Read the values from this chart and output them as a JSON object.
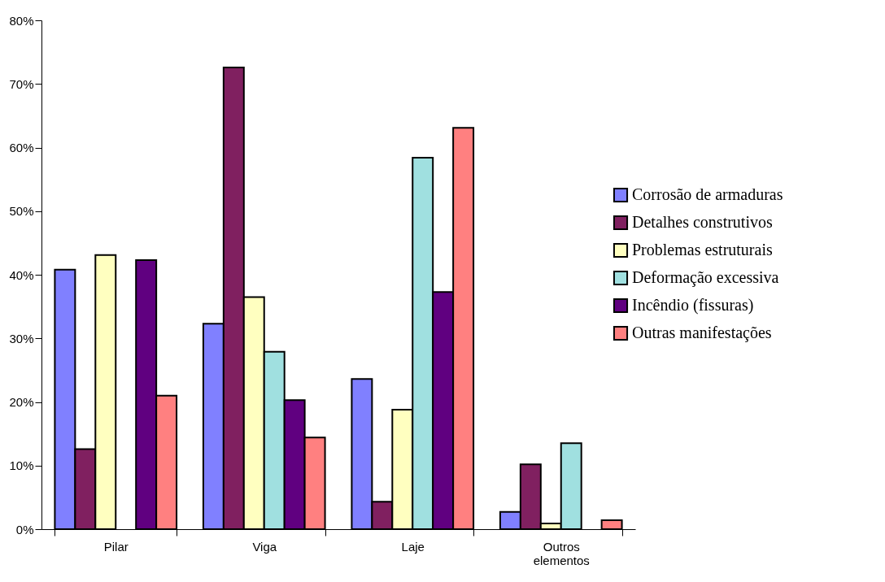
{
  "chart_data": {
    "type": "bar",
    "categories": [
      "Pilar",
      "Viga",
      "Laje",
      "Outros elementos"
    ],
    "series": [
      {
        "name": "Corrosão de armaduras",
        "color": "#8080ff",
        "values": [
          40.8,
          32.3,
          23.6,
          2.7
        ]
      },
      {
        "name": "Detalhes construtivos",
        "color": "#802060",
        "values": [
          12.6,
          72.6,
          4.3,
          10.2
        ]
      },
      {
        "name": "Problemas estruturais",
        "color": "#ffffc0",
        "values": [
          43.1,
          36.5,
          18.8,
          0.9
        ]
      },
      {
        "name": "Deformação excessiva",
        "color": "#a0e0e0",
        "values": [
          null,
          27.9,
          58.4,
          13.5
        ]
      },
      {
        "name": "Incêndio (fissuras)",
        "color": "#600080",
        "values": [
          42.3,
          20.3,
          37.3,
          null
        ]
      },
      {
        "name": "Outras manifestações",
        "color": "#ff8080",
        "values": [
          21.0,
          14.4,
          63.1,
          1.4
        ]
      }
    ],
    "ylim": [
      0,
      80
    ],
    "yticks": [
      {
        "value": 0,
        "label": "0%"
      },
      {
        "value": 10,
        "label": "10%"
      },
      {
        "value": 20,
        "label": "20%"
      },
      {
        "value": 30,
        "label": "30%"
      },
      {
        "value": 40,
        "label": "40%"
      },
      {
        "value": 50,
        "label": "50%"
      },
      {
        "value": 60,
        "label": "60%"
      },
      {
        "value": 70,
        "label": "70%"
      },
      {
        "value": 80,
        "label": "80%"
      }
    ],
    "grid": false,
    "legend": "right"
  }
}
